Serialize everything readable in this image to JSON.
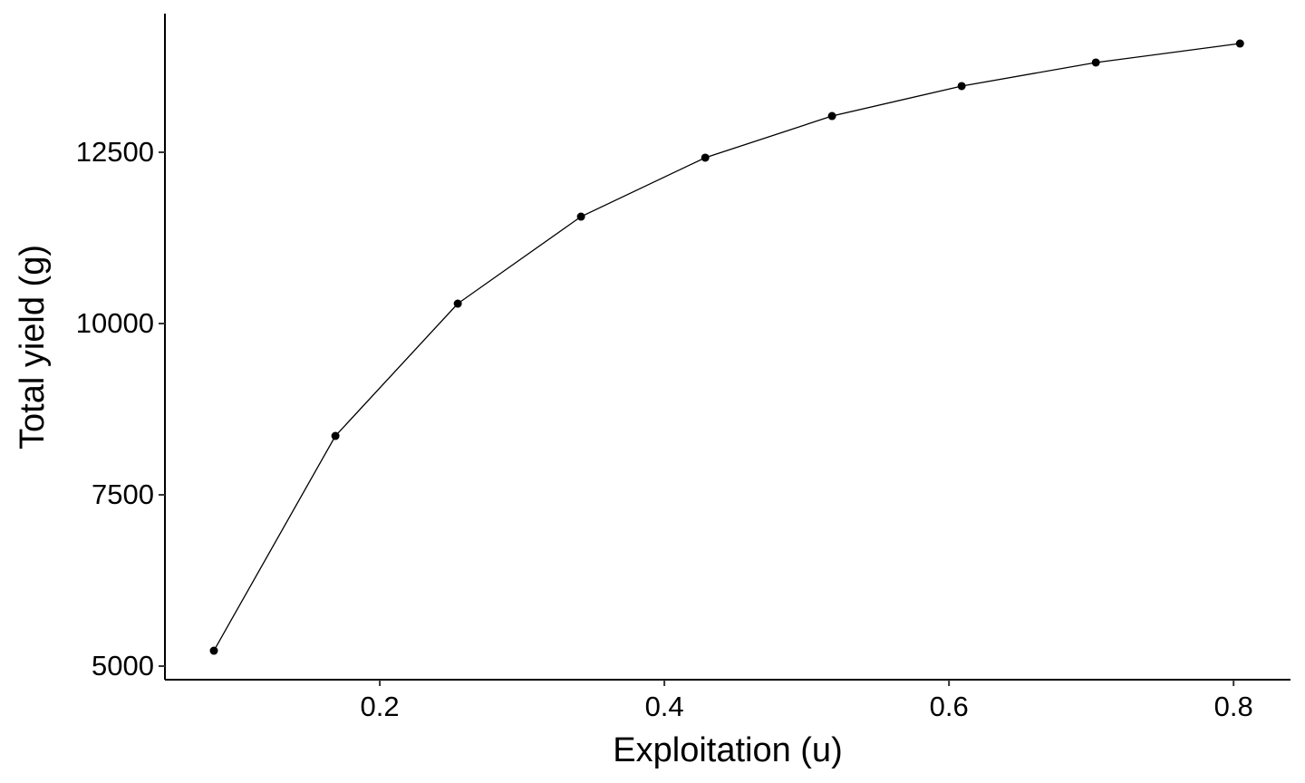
{
  "chart_data": {
    "type": "line",
    "x_label": "Exploitation (u)",
    "y_label": "Total yield (g)",
    "x": [
      0.0834,
      0.1688,
      0.2548,
      0.3414,
      0.4287,
      0.5178,
      0.6089,
      0.7032,
      0.8045
    ],
    "series": [
      {
        "color": "#000000",
        "values": [
          5225,
          8360,
          10291,
          11561,
          12421,
          13029,
          13466,
          13810,
          14087
        ]
      }
    ],
    "xlim": [
      0.049,
      0.84
    ],
    "ylim": [
      4802,
      14524
    ],
    "xticks": [
      0.2,
      0.4,
      0.6,
      0.8
    ],
    "yticks": [
      5000,
      7500,
      10000,
      12500
    ],
    "grid": false
  }
}
